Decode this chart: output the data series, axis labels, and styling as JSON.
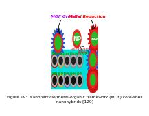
{
  "title_text": "Figure 19:  Nanoparticle/metal-organic framework (MOF) core-shell\nnanohybrids [129]",
  "title_fontsize": 4.2,
  "bg_color": "#ffffff",
  "cyan_bg": "#00dddd",
  "label_np": "Nanoparticle (NP)",
  "label_nppdamof": "NP@PDA@MOF",
  "mof_growth_label": "MOF Growth",
  "metal_reduction_label": "Metal Reduction",
  "polydopamine_label": "polydopamine\n(PDA)",
  "np_label": "NP",
  "mof_growth_color": "#aa00ff",
  "metal_reduction_color": "#ff0000",
  "green_core": "#22bb22",
  "red_shell": "#ee2222",
  "blue_spiky": "#2255cc",
  "red_spiky_color": "#cc1111",
  "np_label_color": "#00aa00",
  "nppdamof_label_color": "#00aa00",
  "np_ring_colors": [
    "#cc0000",
    "#ccaa00",
    "#888888",
    "#888888",
    "#888888"
  ],
  "mof_ring_colors": [
    "#cc0000",
    "#ccaa00",
    "#7733aa",
    "#888888",
    "#888888"
  ]
}
